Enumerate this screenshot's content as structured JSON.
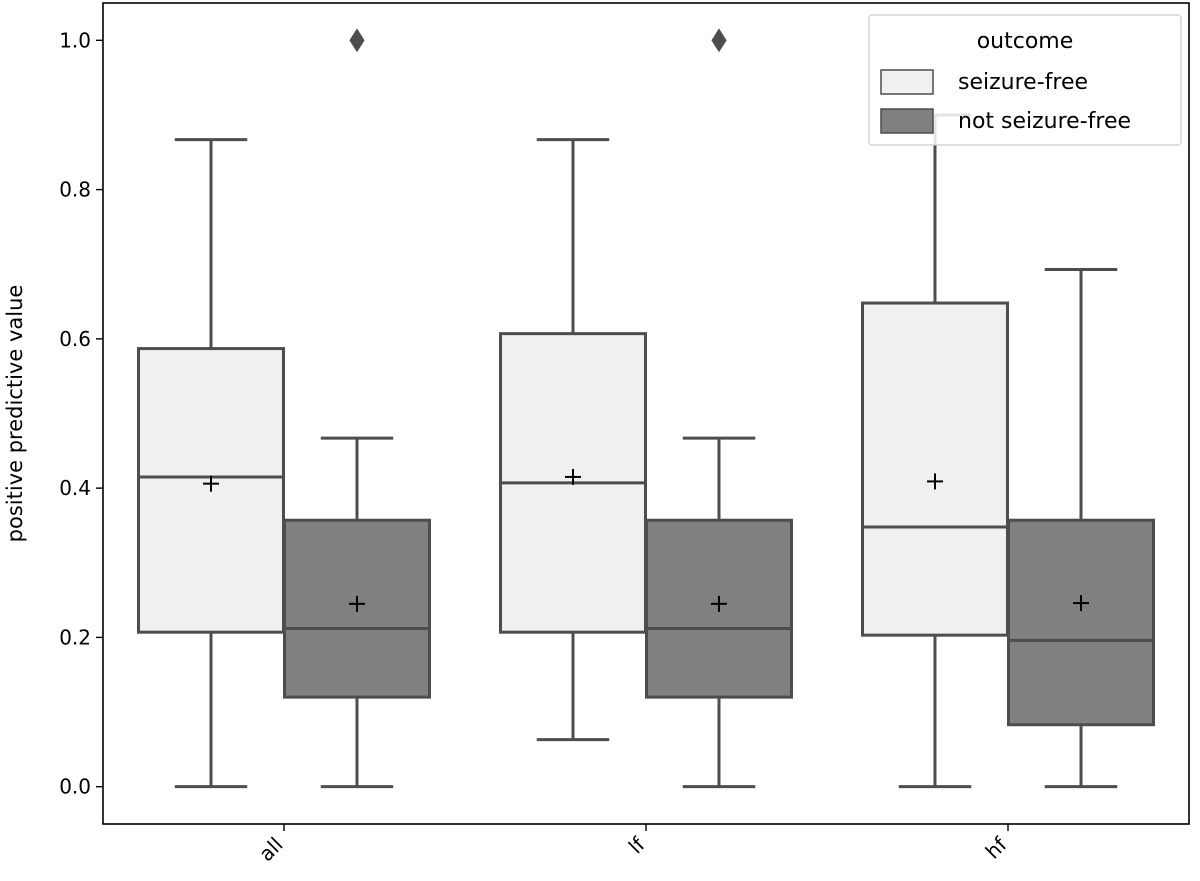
{
  "chart_data": {
    "type": "box",
    "title": "",
    "xlabel": "",
    "ylabel": "positive predictive value",
    "ylim": [
      -0.05,
      1.05
    ],
    "yticks": [
      "0.0",
      "0.2",
      "0.4",
      "0.6",
      "0.8",
      "1.0"
    ],
    "categories": [
      "all",
      "lf",
      "hf"
    ],
    "grid": false,
    "legend": {
      "title": "outcome",
      "placement": "top-right",
      "entries": [
        "seizure-free",
        "not seizure-free"
      ]
    },
    "series": [
      {
        "name": "seizure-free",
        "color": "#f0f0f0",
        "boxes": [
          {
            "whislo": 0.0,
            "q1": 0.207,
            "med": 0.415,
            "q3": 0.587,
            "whishi": 0.867,
            "mean": 0.406,
            "fliers": []
          },
          {
            "whislo": 0.063,
            "q1": 0.207,
            "med": 0.407,
            "q3": 0.607,
            "whishi": 0.867,
            "mean": 0.415,
            "fliers": []
          },
          {
            "whislo": 0.0,
            "q1": 0.203,
            "med": 0.348,
            "q3": 0.648,
            "whishi": 0.9,
            "mean": 0.409,
            "fliers": []
          }
        ]
      },
      {
        "name": "not seizure-free",
        "color": "#808080",
        "boxes": [
          {
            "whislo": 0.0,
            "q1": 0.12,
            "med": 0.212,
            "q3": 0.357,
            "whishi": 0.467,
            "mean": 0.245,
            "fliers": [
              1.0
            ]
          },
          {
            "whislo": 0.0,
            "q1": 0.12,
            "med": 0.212,
            "q3": 0.357,
            "whishi": 0.467,
            "mean": 0.245,
            "fliers": [
              1.0
            ]
          },
          {
            "whislo": 0.0,
            "q1": 0.083,
            "med": 0.196,
            "q3": 0.357,
            "whishi": 0.693,
            "mean": 0.246,
            "fliers": []
          }
        ]
      }
    ],
    "line_color": "#4d4d4d",
    "mean_marker": "+"
  }
}
